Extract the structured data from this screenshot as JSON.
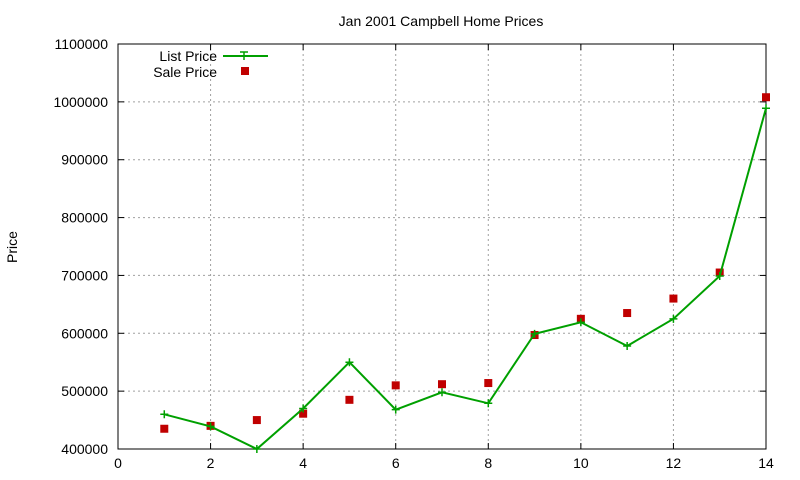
{
  "chart_data": {
    "type": "line",
    "title": "Jan 2001 Campbell Home Prices",
    "xlabel": "",
    "ylabel": "Price",
    "xlim": [
      0,
      14
    ],
    "ylim": [
      400000,
      1100000
    ],
    "x_ticks": [
      "0",
      "2",
      "4",
      "6",
      "8",
      "10",
      "12",
      "14"
    ],
    "y_ticks": [
      "400000",
      "500000",
      "600000",
      "700000",
      "800000",
      "900000",
      "1000000",
      "1100000"
    ],
    "grid": true,
    "legend_position": "top-left",
    "series": [
      {
        "name": "List Price",
        "style": "line+cross",
        "color": "#00a000",
        "x": [
          1,
          2,
          3,
          4,
          5,
          6,
          7,
          8,
          9,
          10,
          11,
          12,
          13,
          14
        ],
        "y": [
          460000,
          439000,
          400000,
          470000,
          550000,
          468000,
          498000,
          479000,
          599000,
          619000,
          578000,
          625000,
          699000,
          989000
        ]
      },
      {
        "name": "Sale Price",
        "style": "square",
        "color": "#c00000",
        "x": [
          1,
          2,
          3,
          4,
          5,
          6,
          7,
          8,
          9,
          10,
          11,
          12,
          13,
          14
        ],
        "y": [
          435000,
          440000,
          450000,
          461000,
          485000,
          510000,
          512000,
          514000,
          597000,
          625000,
          635000,
          660000,
          705000,
          1008000
        ]
      }
    ]
  }
}
